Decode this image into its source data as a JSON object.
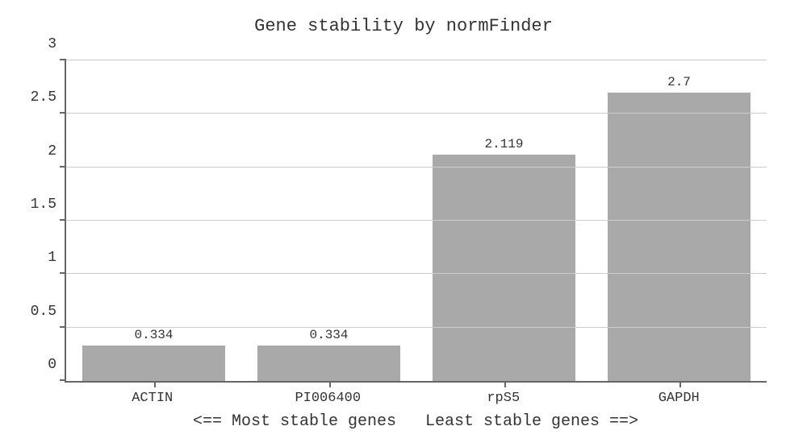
{
  "chart": {
    "type": "bar",
    "title": "Gene stability by normFinder",
    "title_fontsize": 22,
    "categories": [
      "ACTIN",
      "PI006400",
      "rpS5",
      "GAPDH"
    ],
    "values": [
      0.334,
      0.334,
      2.119,
      2.7
    ],
    "value_labels": [
      "0.334",
      "0.334",
      "2.119",
      "2.7"
    ],
    "bar_color": "#a9a9a9",
    "bar_width_pct": 82,
    "ylim": [
      0,
      3
    ],
    "ytick_step": 0.5,
    "yticks": [
      0,
      0.5,
      1,
      1.5,
      2,
      2.5,
      3
    ],
    "ytick_labels": [
      "0",
      "0.5",
      "1",
      "1.5",
      "2",
      "2.5",
      "3"
    ],
    "grid_color": "#cccccc",
    "axis_color": "#666666",
    "background_color": "#ffffff",
    "label_fontsize": 18,
    "tick_fontsize": 17,
    "value_label_fontsize": 16,
    "font_family": "Courier New, monospace",
    "x_caption": "<== Most stable genes   Least stable genes ==>",
    "x_caption_fontsize": 20
  }
}
